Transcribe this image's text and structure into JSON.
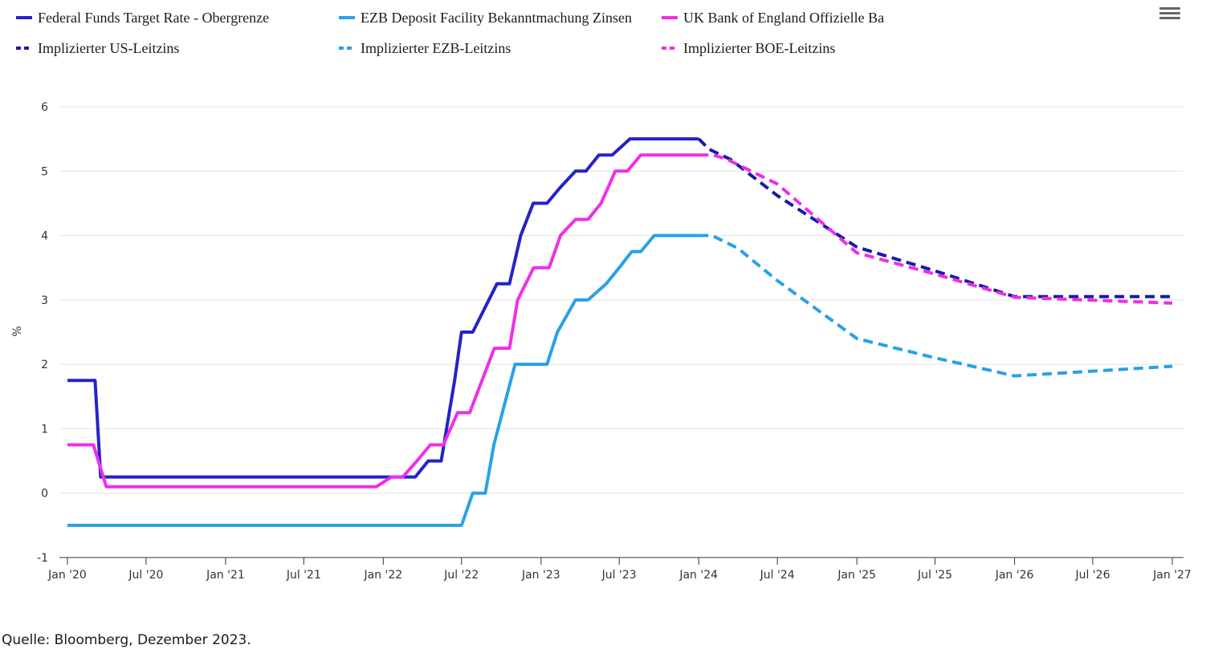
{
  "chart_data": {
    "type": "line",
    "ylabel": "%",
    "ylim": [
      -1,
      6
    ],
    "yticks": [
      "-1",
      "0",
      "1",
      "2",
      "3",
      "4",
      "5",
      "6"
    ],
    "yticks_values": [
      -1,
      0,
      1,
      2,
      3,
      4,
      5,
      6
    ],
    "xrange": [
      "2020-01-01",
      "2027-01-01"
    ],
    "xticks": [
      "Jan '20",
      "Jul '20",
      "Jan '21",
      "Jul '21",
      "Jan '22",
      "Jul '22",
      "Jan '23",
      "Jul '23",
      "Jan '24",
      "Jul '24",
      "Jan '25",
      "Jul '25",
      "Jan '26",
      "Jul '26",
      "Jan '27"
    ],
    "xticks_dates": [
      "2020-01-01",
      "2020-07-01",
      "2021-01-01",
      "2021-07-01",
      "2022-01-01",
      "2022-07-01",
      "2023-01-01",
      "2023-07-01",
      "2024-01-01",
      "2024-07-01",
      "2025-01-01",
      "2025-07-01",
      "2026-01-01",
      "2026-07-01",
      "2027-01-01"
    ],
    "grid": "horizontal",
    "legend_position": "top-left",
    "series": [
      {
        "name": "Federal Funds Target Rate - Obergrenze",
        "color": "#2323c8",
        "dashed": false,
        "points": [
          [
            "2020-01-01",
            1.75
          ],
          [
            "2020-03-05",
            1.75
          ],
          [
            "2020-03-18",
            0.25
          ],
          [
            "2022-03-16",
            0.25
          ],
          [
            "2022-04-15",
            0.5
          ],
          [
            "2022-05-15",
            0.5
          ],
          [
            "2022-06-15",
            1.75
          ],
          [
            "2022-07-01",
            2.5
          ],
          [
            "2022-07-27",
            2.5
          ],
          [
            "2022-09-21",
            3.25
          ],
          [
            "2022-10-20",
            3.25
          ],
          [
            "2022-11-15",
            4.0
          ],
          [
            "2022-12-14",
            4.5
          ],
          [
            "2023-01-15",
            4.5
          ],
          [
            "2023-02-15",
            4.75
          ],
          [
            "2023-03-22",
            5.0
          ],
          [
            "2023-04-15",
            5.0
          ],
          [
            "2023-05-15",
            5.25
          ],
          [
            "2023-06-15",
            5.25
          ],
          [
            "2023-07-26",
            5.5
          ],
          [
            "2024-01-01",
            5.5
          ]
        ]
      },
      {
        "name": "EZB Deposit Facility Bekanntmachung Zinsen",
        "color": "#29a1e6",
        "dashed": false,
        "points": [
          [
            "2020-01-01",
            -0.5
          ],
          [
            "2022-07-01",
            -0.5
          ],
          [
            "2022-07-27",
            0.0
          ],
          [
            "2022-08-25",
            0.0
          ],
          [
            "2022-09-14",
            0.75
          ],
          [
            "2022-11-02",
            2.0
          ],
          [
            "2022-12-01",
            2.0
          ],
          [
            "2022-12-21",
            2.0
          ],
          [
            "2023-01-15",
            2.0
          ],
          [
            "2023-02-08",
            2.5
          ],
          [
            "2023-03-22",
            3.0
          ],
          [
            "2023-04-20",
            3.0
          ],
          [
            "2023-06-01",
            3.25
          ],
          [
            "2023-07-01",
            3.5
          ],
          [
            "2023-07-30",
            3.75
          ],
          [
            "2023-08-20",
            3.75
          ],
          [
            "2023-09-20",
            4.0
          ],
          [
            "2024-01-01",
            4.0
          ]
        ]
      },
      {
        "name": "UK Bank of England Offizielle Ba",
        "color": "#ef2ee8",
        "dashed": false,
        "points": [
          [
            "2020-01-01",
            0.75
          ],
          [
            "2020-03-01",
            0.75
          ],
          [
            "2020-03-31",
            0.1
          ],
          [
            "2021-12-16",
            0.1
          ],
          [
            "2022-01-20",
            0.25
          ],
          [
            "2022-02-15",
            0.25
          ],
          [
            "2022-03-20",
            0.5
          ],
          [
            "2022-04-20",
            0.75
          ],
          [
            "2022-05-20",
            0.75
          ],
          [
            "2022-06-22",
            1.25
          ],
          [
            "2022-07-20",
            1.25
          ],
          [
            "2022-09-15",
            2.25
          ],
          [
            "2022-10-20",
            2.25
          ],
          [
            "2022-11-08",
            3.0
          ],
          [
            "2022-12-15",
            3.5
          ],
          [
            "2023-01-20",
            3.5
          ],
          [
            "2023-02-15",
            4.0
          ],
          [
            "2023-03-22",
            4.25
          ],
          [
            "2023-04-20",
            4.25
          ],
          [
            "2023-05-20",
            4.5
          ],
          [
            "2023-06-22",
            5.0
          ],
          [
            "2023-07-20",
            5.0
          ],
          [
            "2023-08-20",
            5.25
          ],
          [
            "2024-01-01",
            5.25
          ]
        ]
      },
      {
        "name": "Implizierter US-Leitzins",
        "color": "#1a1aa8",
        "dashed": true,
        "points": [
          [
            "2024-01-01",
            5.5
          ],
          [
            "2024-01-25",
            5.34
          ],
          [
            "2024-03-15",
            5.18
          ],
          [
            "2024-07-01",
            4.62
          ],
          [
            "2025-01-01",
            3.82
          ],
          [
            "2025-07-01",
            3.45
          ],
          [
            "2026-01-01",
            3.05
          ],
          [
            "2027-01-01",
            3.05
          ]
        ]
      },
      {
        "name": "Implizierter EZB-Leitzins",
        "color": "#29a1e6",
        "dashed": true,
        "points": [
          [
            "2024-01-01",
            4.0
          ],
          [
            "2024-02-01",
            4.0
          ],
          [
            "2024-04-01",
            3.8
          ],
          [
            "2024-07-01",
            3.3
          ],
          [
            "2025-01-01",
            2.4
          ],
          [
            "2025-07-01",
            2.1
          ],
          [
            "2026-01-01",
            1.82
          ],
          [
            "2027-01-01",
            1.97
          ]
        ]
      },
      {
        "name": "Implizierter BOE-Leitzins",
        "color": "#ef2ee8",
        "dashed": true,
        "points": [
          [
            "2024-01-01",
            5.25
          ],
          [
            "2024-02-01",
            5.25
          ],
          [
            "2024-03-01",
            5.2
          ],
          [
            "2024-07-01",
            4.8
          ],
          [
            "2025-01-01",
            3.73
          ],
          [
            "2025-07-01",
            3.4
          ],
          [
            "2026-01-01",
            3.04
          ],
          [
            "2027-01-01",
            2.95
          ]
        ]
      }
    ]
  },
  "menu": {
    "icon": "hamburger-menu-icon"
  },
  "source": "Quelle: Bloomberg, Dezember 2023."
}
